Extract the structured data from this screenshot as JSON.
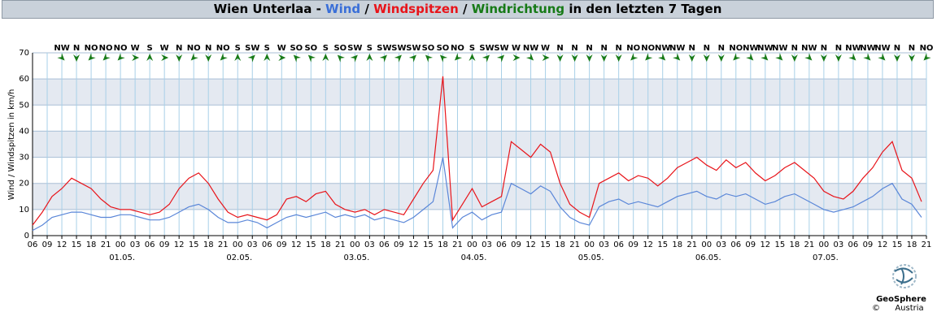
{
  "chart_data": {
    "type": "line",
    "title_parts": [
      {
        "text": "Wien Unterlaa - ",
        "color": "#000000"
      },
      {
        "text": "Wind",
        "color": "#3a6fd8"
      },
      {
        "text": " / ",
        "color": "#000000"
      },
      {
        "text": "Windspitzen",
        "color": "#e8141a"
      },
      {
        "text": " / ",
        "color": "#000000"
      },
      {
        "text": "Windrichtung",
        "color": "#177a17"
      },
      {
        "text": " in den letzten 7 Tagen",
        "color": "#000000"
      }
    ],
    "y_label": "Wind / Windspitzen in km/h",
    "xlim": [
      0,
      183
    ],
    "ylim": [
      0,
      70
    ],
    "yticks": [
      0,
      10,
      20,
      30,
      40,
      50,
      60,
      70
    ],
    "shaded_bands": [
      [
        10,
        20
      ],
      [
        30,
        40
      ],
      [
        50,
        60
      ]
    ],
    "grid": true,
    "xticks": [
      {
        "value": 0,
        "label": "06"
      },
      {
        "value": 3,
        "label": "09"
      },
      {
        "value": 6,
        "label": "12"
      },
      {
        "value": 9,
        "label": "15"
      },
      {
        "value": 12,
        "label": "18"
      },
      {
        "value": 15,
        "label": "21"
      },
      {
        "value": 18,
        "label": "00"
      },
      {
        "value": 21,
        "label": "03"
      },
      {
        "value": 24,
        "label": "06"
      },
      {
        "value": 27,
        "label": "09"
      },
      {
        "value": 30,
        "label": "12"
      },
      {
        "value": 33,
        "label": "15"
      },
      {
        "value": 36,
        "label": "18"
      },
      {
        "value": 39,
        "label": "21"
      },
      {
        "value": 42,
        "label": "00"
      },
      {
        "value": 45,
        "label": "03"
      },
      {
        "value": 48,
        "label": "06"
      },
      {
        "value": 51,
        "label": "09"
      },
      {
        "value": 54,
        "label": "12"
      },
      {
        "value": 57,
        "label": "15"
      },
      {
        "value": 60,
        "label": "18"
      },
      {
        "value": 63,
        "label": "21"
      },
      {
        "value": 66,
        "label": "00"
      },
      {
        "value": 69,
        "label": "03"
      },
      {
        "value": 72,
        "label": "06"
      },
      {
        "value": 75,
        "label": "09"
      },
      {
        "value": 78,
        "label": "12"
      },
      {
        "value": 81,
        "label": "15"
      },
      {
        "value": 84,
        "label": "18"
      },
      {
        "value": 87,
        "label": "21"
      },
      {
        "value": 90,
        "label": "00"
      },
      {
        "value": 93,
        "label": "03"
      },
      {
        "value": 96,
        "label": "06"
      },
      {
        "value": 99,
        "label": "09"
      },
      {
        "value": 102,
        "label": "12"
      },
      {
        "value": 105,
        "label": "15"
      },
      {
        "value": 108,
        "label": "18"
      },
      {
        "value": 111,
        "label": "21"
      },
      {
        "value": 114,
        "label": "00"
      },
      {
        "value": 117,
        "label": "03"
      },
      {
        "value": 120,
        "label": "06"
      },
      {
        "value": 123,
        "label": "09"
      },
      {
        "value": 126,
        "label": "12"
      },
      {
        "value": 129,
        "label": "15"
      },
      {
        "value": 132,
        "label": "18"
      },
      {
        "value": 135,
        "label": "21"
      },
      {
        "value": 138,
        "label": "00"
      },
      {
        "value": 141,
        "label": "03"
      },
      {
        "value": 144,
        "label": "06"
      },
      {
        "value": 147,
        "label": "09"
      },
      {
        "value": 150,
        "label": "12"
      },
      {
        "value": 153,
        "label": "15"
      },
      {
        "value": 156,
        "label": "18"
      },
      {
        "value": 159,
        "label": "21"
      },
      {
        "value": 162,
        "label": "00"
      },
      {
        "value": 165,
        "label": "03"
      },
      {
        "value": 168,
        "label": "06"
      },
      {
        "value": 171,
        "label": "09"
      },
      {
        "value": 174,
        "label": "12"
      },
      {
        "value": 177,
        "label": "15"
      },
      {
        "value": 180,
        "label": "18"
      },
      {
        "value": 183,
        "label": "21"
      }
    ],
    "date_labels": [
      {
        "value": 18,
        "label": "01.05."
      },
      {
        "value": 42,
        "label": "02.05."
      },
      {
        "value": 66,
        "label": "03.05."
      },
      {
        "value": 90,
        "label": "04.05."
      },
      {
        "value": 114,
        "label": "05.05."
      },
      {
        "value": 138,
        "label": "06.05."
      },
      {
        "value": 162,
        "label": "07.05."
      }
    ],
    "direction_x": [
      6,
      9,
      12,
      15,
      18,
      21,
      24,
      27,
      30,
      33,
      36,
      39,
      42,
      45,
      48,
      51,
      54,
      57,
      60,
      63,
      66,
      69,
      72,
      75,
      78,
      81,
      84,
      87,
      90,
      93,
      96,
      99,
      102,
      105,
      108,
      111,
      114,
      117,
      120,
      123,
      126,
      129,
      132,
      135,
      138,
      141,
      144,
      147,
      150,
      153,
      156,
      159,
      162,
      165,
      168,
      171,
      174,
      177,
      180,
      183
    ],
    "directions": [
      "NW",
      "N",
      "NO",
      "NO",
      "NO",
      "W",
      "S",
      "W",
      "N",
      "NO",
      "N",
      "NO",
      "S",
      "SW",
      "S",
      "W",
      "SO",
      "SO",
      "S",
      "SO",
      "SW",
      "S",
      "SW",
      "SW",
      "SW",
      "SO",
      "SO",
      "NO",
      "S",
      "SW",
      "SW",
      "W",
      "NW",
      "W",
      "N",
      "N",
      "N",
      "N",
      "N",
      "NO",
      "NO",
      "NW",
      "NW",
      "N",
      "N",
      "N",
      "NO",
      "NW",
      "NW",
      "NW",
      "N",
      "NW",
      "N",
      "N",
      "NW",
      "NW",
      "NW",
      "N",
      "N",
      "NO"
    ],
    "direction_color": "#177a17",
    "x": [
      0,
      2,
      4,
      6,
      8,
      10,
      12,
      14,
      16,
      18,
      20,
      22,
      24,
      26,
      28,
      30,
      32,
      34,
      36,
      38,
      40,
      42,
      44,
      46,
      48,
      50,
      52,
      54,
      56,
      58,
      60,
      62,
      64,
      66,
      68,
      70,
      72,
      74,
      76,
      78,
      80,
      82,
      84,
      86,
      88,
      90,
      92,
      94,
      96,
      98,
      100,
      102,
      104,
      106,
      108,
      110,
      112,
      114,
      116,
      118,
      120,
      122,
      124,
      126,
      128,
      130,
      132,
      134,
      136,
      138,
      140,
      142,
      144,
      146,
      148,
      150,
      152,
      154,
      156,
      158,
      160,
      162,
      164,
      166,
      168,
      170,
      172,
      174,
      176,
      178,
      180,
      182
    ],
    "series": [
      {
        "name": "Windspitzen",
        "color": "#e8141a",
        "values": [
          4,
          9,
          15,
          18,
          22,
          20,
          18,
          14,
          11,
          10,
          10,
          9,
          8,
          9,
          12,
          18,
          22,
          24,
          20,
          14,
          9,
          7,
          8,
          7,
          6,
          8,
          14,
          15,
          13,
          16,
          17,
          12,
          10,
          9,
          10,
          8,
          10,
          9,
          8,
          14,
          20,
          25,
          61,
          6,
          12,
          18,
          11,
          13,
          15,
          36,
          33,
          30,
          35,
          32,
          20,
          12,
          9,
          7,
          20,
          22,
          24,
          21,
          23,
          22,
          19,
          22,
          26,
          28,
          30,
          27,
          25,
          29,
          26,
          28,
          24,
          21,
          23,
          26,
          28,
          25,
          22,
          17,
          15,
          14,
          17,
          22,
          26,
          32,
          36,
          25,
          22,
          13
        ]
      },
      {
        "name": "Wind",
        "color": "#5a86d8",
        "values": [
          2,
          4,
          7,
          8,
          9,
          9,
          8,
          7,
          7,
          8,
          8,
          7,
          6,
          6,
          7,
          9,
          11,
          12,
          10,
          7,
          5,
          5,
          6,
          5,
          3,
          5,
          7,
          8,
          7,
          8,
          9,
          7,
          8,
          7,
          8,
          6,
          7,
          6,
          5,
          7,
          10,
          13,
          30,
          3,
          7,
          9,
          6,
          8,
          9,
          20,
          18,
          16,
          19,
          17,
          11,
          7,
          5,
          4,
          11,
          13,
          14,
          12,
          13,
          12,
          11,
          13,
          15,
          16,
          17,
          15,
          14,
          16,
          15,
          16,
          14,
          12,
          13,
          15,
          16,
          14,
          12,
          10,
          9,
          10,
          11,
          13,
          15,
          18,
          20,
          14,
          12,
          7
        ]
      }
    ],
    "logo_name": "GeoSphere",
    "logo_sub": "Austria",
    "copyright": "©"
  }
}
